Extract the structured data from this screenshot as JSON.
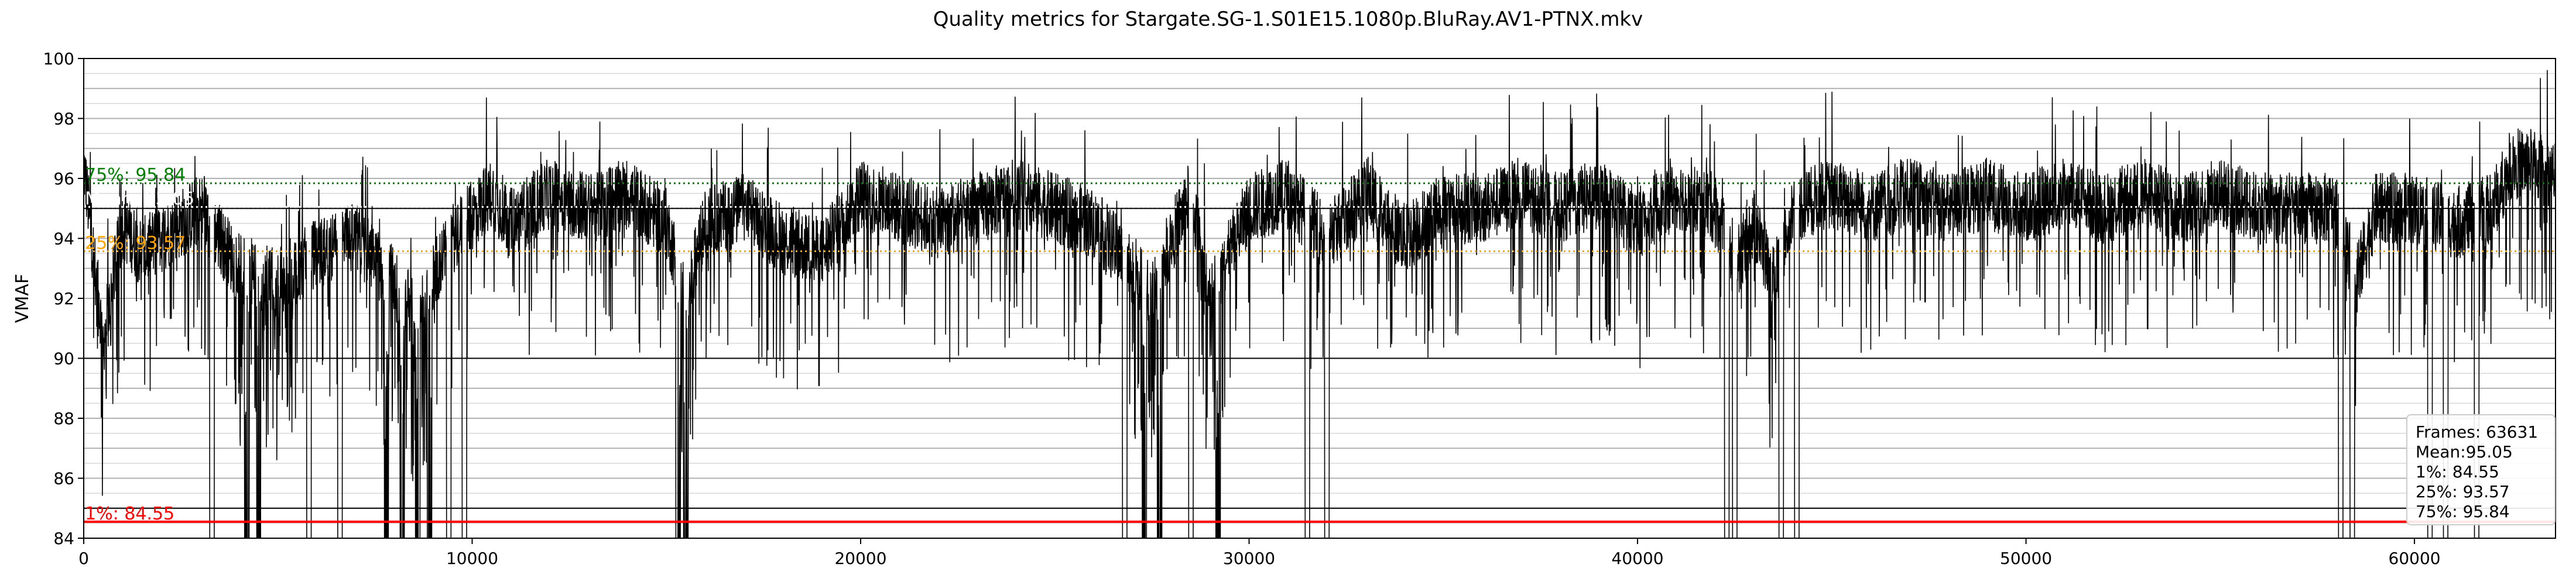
{
  "chart_data": {
    "type": "line",
    "title": "Quality metrics for Stargate.SG-1.S01E15.1080p.BluRay.AV1-PTNX.mkv",
    "xlabel": "",
    "ylabel": "VMAF",
    "xlim": [
      0,
      63631
    ],
    "ylim": [
      84,
      100
    ],
    "x_ticks": [
      "0",
      "10000",
      "20000",
      "30000",
      "40000",
      "50000",
      "60000"
    ],
    "y_ticks": [
      "84",
      "86",
      "88",
      "90",
      "92",
      "94",
      "96",
      "98",
      "100"
    ],
    "grid": true,
    "series": [
      {
        "color": "#000000",
        "frames": 63631,
        "profile_x": [
          0,
          500,
          1000,
          1500,
          2500,
          3000,
          4000,
          5000,
          6000,
          7000,
          8000,
          8500,
          9500,
          10500,
          11000,
          12000,
          13000,
          14000,
          15000,
          15500,
          16000,
          17000,
          18000,
          19000,
          20000,
          21000,
          22000,
          23000,
          24000,
          25000,
          26000,
          27000,
          27500,
          28000,
          28500,
          29000,
          30000,
          31000,
          32000,
          33000,
          34000,
          35000,
          36000,
          37000,
          38000,
          39000,
          40000,
          41000,
          42000,
          42500,
          43000,
          43500,
          44000,
          45000,
          46000,
          47000,
          48000,
          49000,
          50000,
          51000,
          52000,
          53000,
          54000,
          55000,
          56000,
          57000,
          58000,
          58500,
          59000,
          60000,
          61000,
          62000,
          62500,
          63000,
          63631
        ],
        "profile_y": [
          96.5,
          90.5,
          94.5,
          93.5,
          94.5,
          95.0,
          93.0,
          92.5,
          93.5,
          94.0,
          92.5,
          91.5,
          94.0,
          95.5,
          94.5,
          95.5,
          95.0,
          95.5,
          94.5,
          92.0,
          94.5,
          95.0,
          94.0,
          93.5,
          95.5,
          95.0,
          94.5,
          95.0,
          95.5,
          95.0,
          94.5,
          93.0,
          92.0,
          94.0,
          95.5,
          92.0,
          95.0,
          95.5,
          94.0,
          95.5,
          94.0,
          95.0,
          95.0,
          95.5,
          95.0,
          95.5,
          94.5,
          95.5,
          95.0,
          93.0,
          94.5,
          92.5,
          95.0,
          95.5,
          95.0,
          95.5,
          95.0,
          95.5,
          95.0,
          95.5,
          95.0,
          95.5,
          95.0,
          95.5,
          95.0,
          95.0,
          95.0,
          92.5,
          95.0,
          95.0,
          94.5,
          95.0,
          96.5,
          96.5,
          96.0
        ],
        "dips_x": [
          3300,
          4200,
          4500,
          5800,
          6600,
          7800,
          8200,
          8600,
          8900,
          9400,
          9800,
          15300,
          15500,
          26800,
          27300,
          27700,
          28500,
          29200,
          31500,
          32000,
          42300,
          42500,
          43700,
          44100,
          58100,
          58400,
          60400,
          60800,
          61600
        ]
      }
    ],
    "reference_lines": [
      {
        "label": "75%: 95.84",
        "value": 95.84,
        "color": "#008000",
        "style": "dotted"
      },
      {
        "label": "Mean: 95.05",
        "value": 95.05,
        "color": "#ffffff",
        "style": "dotted"
      },
      {
        "label": "25%: 93.57",
        "value": 93.57,
        "color": "#ffa500",
        "style": "dotted"
      },
      {
        "label": "1%: 84.55",
        "value": 84.55,
        "color": "#ff0000",
        "style": "solid"
      }
    ],
    "legend": {
      "placement": "lower-right",
      "lines": [
        "Frames: 63631",
        "Mean:95.05",
        "1%: 84.55",
        "25%: 93.57",
        "75%: 95.84"
      ]
    }
  }
}
